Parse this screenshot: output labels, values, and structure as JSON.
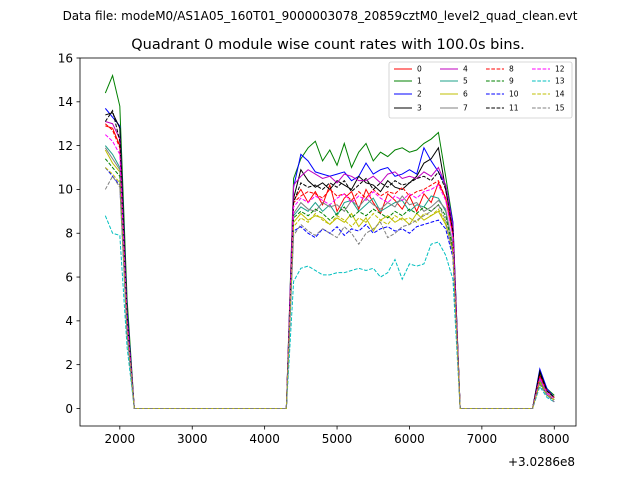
{
  "suptitle": "Data file: modeM0/AS1A05_160T01_9000003078_20859cztM0_level2_quad_clean.evt",
  "chart_data": {
    "type": "line",
    "title": "Quadrant 0 module wise count rates with 100.0s bins.",
    "xlabel": "",
    "ylabel": "",
    "x_offset_label": "+3.0286e8",
    "xlim": [
      1450,
      8300
    ],
    "ylim": [
      -0.8,
      16
    ],
    "xticks": [
      2000,
      3000,
      4000,
      5000,
      6000,
      7000,
      8000
    ],
    "yticks": [
      0,
      2,
      4,
      6,
      8,
      10,
      12,
      14,
      16
    ],
    "grid": false,
    "legend_position": "top-right",
    "x": [
      1800,
      1900,
      2000,
      2100,
      2200,
      2300,
      2400,
      2500,
      2600,
      2700,
      2800,
      2900,
      3000,
      3100,
      3200,
      3300,
      3400,
      3500,
      3600,
      3700,
      3800,
      3900,
      4000,
      4100,
      4200,
      4300,
      4400,
      4500,
      4600,
      4700,
      4800,
      4900,
      5000,
      5100,
      5200,
      5300,
      5400,
      5500,
      5600,
      5700,
      5800,
      5900,
      6000,
      6100,
      6200,
      6300,
      6400,
      6500,
      6600,
      6700,
      6800,
      6900,
      7000,
      7100,
      7200,
      7300,
      7400,
      7500,
      7600,
      7700,
      7800,
      7900,
      8000
    ],
    "series": [
      {
        "name": "0",
        "color": "#ff0000",
        "dash": "solid",
        "values": [
          12.9,
          12.8,
          12.0,
          4.0,
          0,
          0,
          0,
          0,
          0,
          0,
          0,
          0,
          0,
          0,
          0,
          0,
          0,
          0,
          0,
          0,
          0,
          0,
          0,
          0,
          0,
          0,
          9.5,
          10.0,
          9.4,
          9.9,
          9.3,
          10.2,
          9.0,
          9.6,
          9.9,
          9.1,
          10.0,
          9.4,
          8.9,
          9.8,
          9.5,
          9.1,
          9.7,
          9.0,
          9.8,
          9.4,
          10.3,
          9.6,
          8.0,
          0,
          0,
          0,
          0,
          0,
          0,
          0,
          0,
          0,
          0,
          0,
          1.5,
          0.8,
          0.5
        ]
      },
      {
        "name": "1",
        "color": "#008000",
        "dash": "solid",
        "values": [
          14.4,
          15.2,
          13.8,
          5.0,
          0,
          0,
          0,
          0,
          0,
          0,
          0,
          0,
          0,
          0,
          0,
          0,
          0,
          0,
          0,
          0,
          0,
          0,
          0,
          0,
          0,
          0,
          10.5,
          11.4,
          11.9,
          12.2,
          11.3,
          11.8,
          11.1,
          12.1,
          11.0,
          11.7,
          12.1,
          11.3,
          11.7,
          11.5,
          11.8,
          11.9,
          11.7,
          11.8,
          12.1,
          12.3,
          12.6,
          10.6,
          8.5,
          0,
          0,
          0,
          0,
          0,
          0,
          0,
          0,
          0,
          0,
          0,
          1.6,
          0.9,
          0.6
        ]
      },
      {
        "name": "2",
        "color": "#0000ff",
        "dash": "solid",
        "values": [
          13.7,
          13.3,
          12.9,
          4.5,
          0,
          0,
          0,
          0,
          0,
          0,
          0,
          0,
          0,
          0,
          0,
          0,
          0,
          0,
          0,
          0,
          0,
          0,
          0,
          0,
          0,
          0,
          10.1,
          11.6,
          11.3,
          10.8,
          10.7,
          10.6,
          10.7,
          10.8,
          10.4,
          10.6,
          11.2,
          10.7,
          10.9,
          11.0,
          10.6,
          10.7,
          10.9,
          10.7,
          11.9,
          11.3,
          10.8,
          10.2,
          8.5,
          0,
          0,
          0,
          0,
          0,
          0,
          0,
          0,
          0,
          0,
          0,
          1.8,
          0.9,
          0.5
        ]
      },
      {
        "name": "3",
        "color": "#000000",
        "dash": "solid",
        "values": [
          13.4,
          13.5,
          12.8,
          4.2,
          0,
          0,
          0,
          0,
          0,
          0,
          0,
          0,
          0,
          0,
          0,
          0,
          0,
          0,
          0,
          0,
          0,
          0,
          0,
          0,
          0,
          0,
          9.6,
          10.9,
          10.4,
          10.1,
          10.3,
          10.0,
          10.4,
          10.2,
          10.0,
          10.6,
          10.3,
          10.2,
          9.9,
          10.4,
          10.1,
          10.0,
          10.3,
          10.6,
          11.2,
          11.4,
          11.9,
          10.0,
          8.2,
          0,
          0,
          0,
          0,
          0,
          0,
          0,
          0,
          0,
          0,
          0,
          1.7,
          0.8,
          0.5
        ]
      },
      {
        "name": "4",
        "color": "#bf00bf",
        "dash": "solid",
        "values": [
          13.1,
          13.0,
          12.3,
          4.1,
          0,
          0,
          0,
          0,
          0,
          0,
          0,
          0,
          0,
          0,
          0,
          0,
          0,
          0,
          0,
          0,
          0,
          0,
          0,
          0,
          0,
          0,
          10.2,
          10.6,
          10.9,
          10.7,
          10.5,
          10.6,
          10.3,
          10.7,
          10.6,
          10.4,
          10.4,
          10.6,
          10.3,
          10.7,
          10.8,
          10.5,
          10.6,
          10.5,
          10.8,
          10.6,
          11.0,
          10.2,
          8.3,
          0,
          0,
          0,
          0,
          0,
          0,
          0,
          0,
          0,
          0,
          0,
          1.4,
          0.7,
          0.4
        ]
      },
      {
        "name": "5",
        "color": "#1ca08a",
        "dash": "solid",
        "values": [
          12.0,
          11.6,
          11.0,
          3.8,
          0,
          0,
          0,
          0,
          0,
          0,
          0,
          0,
          0,
          0,
          0,
          0,
          0,
          0,
          0,
          0,
          0,
          0,
          0,
          0,
          0,
          0,
          8.8,
          9.2,
          9.0,
          9.4,
          9.0,
          9.3,
          8.8,
          9.4,
          9.5,
          9.0,
          9.3,
          9.6,
          9.0,
          9.2,
          9.4,
          9.5,
          9.0,
          9.3,
          9.2,
          9.7,
          9.6,
          9.0,
          7.5,
          0,
          0,
          0,
          0,
          0,
          0,
          0,
          0,
          0,
          0,
          0,
          1.3,
          0.7,
          0.4
        ]
      },
      {
        "name": "6",
        "color": "#bfbf00",
        "dash": "solid",
        "values": [
          11.8,
          11.2,
          10.8,
          3.6,
          0,
          0,
          0,
          0,
          0,
          0,
          0,
          0,
          0,
          0,
          0,
          0,
          0,
          0,
          0,
          0,
          0,
          0,
          0,
          0,
          0,
          0,
          8.5,
          8.9,
          8.6,
          8.8,
          8.7,
          8.4,
          8.7,
          8.5,
          8.9,
          8.3,
          8.7,
          8.1,
          8.6,
          8.8,
          8.5,
          8.7,
          8.4,
          8.9,
          8.6,
          8.8,
          9.0,
          8.4,
          7.2,
          0,
          0,
          0,
          0,
          0,
          0,
          0,
          0,
          0,
          0,
          0,
          1.2,
          0.6,
          0.4
        ]
      },
      {
        "name": "7",
        "color": "#808080",
        "dash": "solid",
        "values": [
          11.9,
          11.4,
          10.9,
          3.7,
          0,
          0,
          0,
          0,
          0,
          0,
          0,
          0,
          0,
          0,
          0,
          0,
          0,
          0,
          0,
          0,
          0,
          0,
          0,
          0,
          0,
          0,
          8.9,
          9.4,
          9.1,
          9.0,
          9.4,
          9.2,
          9.3,
          9.0,
          9.5,
          9.2,
          9.6,
          9.3,
          9.1,
          9.4,
          9.2,
          9.7,
          9.3,
          9.4,
          9.0,
          9.2,
          9.5,
          9.1,
          7.4,
          0,
          0,
          0,
          0,
          0,
          0,
          0,
          0,
          0,
          0,
          0,
          1.3,
          0.7,
          0.4
        ]
      },
      {
        "name": "8",
        "color": "#ff0000",
        "dash": "dashed",
        "values": [
          13.0,
          12.7,
          11.9,
          4.1,
          0,
          0,
          0,
          0,
          0,
          0,
          0,
          0,
          0,
          0,
          0,
          0,
          0,
          0,
          0,
          0,
          0,
          0,
          0,
          0,
          0,
          0,
          9.4,
          9.7,
          9.9,
          9.8,
          9.6,
          10.0,
          9.7,
          9.8,
          9.5,
          9.9,
          9.6,
          10.0,
          9.7,
          9.9,
          9.8,
          10.1,
          9.7,
          9.9,
          10.0,
          10.2,
          10.4,
          9.6,
          7.9,
          0,
          0,
          0,
          0,
          0,
          0,
          0,
          0,
          0,
          0,
          0,
          1.5,
          0.8,
          0.5
        ]
      },
      {
        "name": "9",
        "color": "#008000",
        "dash": "dashed",
        "values": [
          11.4,
          11.0,
          10.6,
          3.6,
          0,
          0,
          0,
          0,
          0,
          0,
          0,
          0,
          0,
          0,
          0,
          0,
          0,
          0,
          0,
          0,
          0,
          0,
          0,
          0,
          0,
          0,
          8.7,
          9.0,
          8.8,
          9.1,
          8.9,
          8.6,
          8.9,
          9.2,
          8.7,
          9.0,
          8.8,
          9.1,
          8.9,
          8.7,
          9.0,
          8.8,
          9.1,
          8.9,
          9.2,
          9.0,
          9.3,
          8.8,
          7.3,
          0,
          0,
          0,
          0,
          0,
          0,
          0,
          0,
          0,
          0,
          0,
          1.2,
          0.6,
          0.4
        ]
      },
      {
        "name": "10",
        "color": "#0000ff",
        "dash": "dashed",
        "values": [
          11.0,
          10.6,
          10.2,
          3.4,
          0,
          0,
          0,
          0,
          0,
          0,
          0,
          0,
          0,
          0,
          0,
          0,
          0,
          0,
          0,
          0,
          0,
          0,
          0,
          0,
          0,
          0,
          8.1,
          8.3,
          8.0,
          7.8,
          8.2,
          8.0,
          8.3,
          7.9,
          8.2,
          8.1,
          8.4,
          8.0,
          8.2,
          8.3,
          8.1,
          8.2,
          8.0,
          8.3,
          8.4,
          8.5,
          8.6,
          8.2,
          6.9,
          0,
          0,
          0,
          0,
          0,
          0,
          0,
          0,
          0,
          0,
          0,
          1.1,
          0.6,
          0.3
        ]
      },
      {
        "name": "11",
        "color": "#000000",
        "dash": "dashed",
        "values": [
          13.1,
          13.6,
          12.2,
          4.2,
          0,
          0,
          0,
          0,
          0,
          0,
          0,
          0,
          0,
          0,
          0,
          0,
          0,
          0,
          0,
          0,
          0,
          0,
          0,
          0,
          0,
          0,
          9.4,
          10.3,
          10.1,
          10.2,
          10.0,
          10.3,
          10.1,
          10.4,
          9.9,
          10.2,
          10.5,
          10.0,
          10.3,
          10.1,
          10.4,
          10.2,
          10.3,
          10.5,
          10.6,
          10.4,
          10.8,
          10.0,
          8.1,
          0,
          0,
          0,
          0,
          0,
          0,
          0,
          0,
          0,
          0,
          0,
          1.6,
          0.8,
          0.5
        ]
      },
      {
        "name": "12",
        "color": "#ff00ff",
        "dash": "dashed",
        "values": [
          12.5,
          12.2,
          11.6,
          4.0,
          0,
          0,
          0,
          0,
          0,
          0,
          0,
          0,
          0,
          0,
          0,
          0,
          0,
          0,
          0,
          0,
          0,
          0,
          0,
          0,
          0,
          0,
          9.2,
          9.6,
          9.4,
          9.7,
          9.5,
          9.3,
          9.6,
          9.8,
          9.4,
          9.7,
          9.5,
          9.9,
          9.6,
          9.4,
          9.7,
          9.5,
          9.8,
          9.6,
          9.9,
          10.0,
          10.2,
          9.5,
          7.8,
          0,
          0,
          0,
          0,
          0,
          0,
          0,
          0,
          0,
          0,
          0,
          1.4,
          0.7,
          0.4
        ]
      },
      {
        "name": "13",
        "color": "#00bfbf",
        "dash": "dashed",
        "values": [
          8.8,
          8.0,
          7.9,
          2.8,
          0,
          0,
          0,
          0,
          0,
          0,
          0,
          0,
          0,
          0,
          0,
          0,
          0,
          0,
          0,
          0,
          0,
          0,
          0,
          0,
          0,
          0,
          5.8,
          6.4,
          6.5,
          6.3,
          6.1,
          6.1,
          6.2,
          6.2,
          6.3,
          6.4,
          6.3,
          6.4,
          6.0,
          6.2,
          6.8,
          5.9,
          6.6,
          6.5,
          6.6,
          7.5,
          7.6,
          7.0,
          5.9,
          0,
          0,
          0,
          0,
          0,
          0,
          0,
          0,
          0,
          0,
          0,
          1.0,
          0.5,
          0.3
        ]
      },
      {
        "name": "14",
        "color": "#bfbf00",
        "dash": "dashed",
        "values": [
          11.0,
          10.7,
          10.3,
          3.5,
          0,
          0,
          0,
          0,
          0,
          0,
          0,
          0,
          0,
          0,
          0,
          0,
          0,
          0,
          0,
          0,
          0,
          0,
          0,
          0,
          0,
          0,
          8.3,
          8.7,
          8.5,
          8.9,
          8.6,
          8.4,
          8.8,
          8.6,
          8.3,
          8.7,
          8.5,
          8.9,
          8.6,
          8.4,
          8.8,
          8.6,
          8.7,
          8.5,
          8.9,
          8.8,
          9.1,
          8.5,
          7.1,
          0,
          0,
          0,
          0,
          0,
          0,
          0,
          0,
          0,
          0,
          0,
          1.2,
          0.6,
          0.4
        ]
      },
      {
        "name": "15",
        "color": "#808080",
        "dash": "dashed",
        "values": [
          10.0,
          10.6,
          10.1,
          3.4,
          0,
          0,
          0,
          0,
          0,
          0,
          0,
          0,
          0,
          0,
          0,
          0,
          0,
          0,
          0,
          0,
          0,
          0,
          0,
          0,
          0,
          0,
          7.9,
          8.4,
          8.1,
          7.9,
          8.2,
          8.0,
          7.8,
          8.3,
          8.0,
          7.5,
          8.0,
          8.2,
          8.5,
          7.8,
          8.0,
          8.3,
          8.4,
          8.6,
          8.8,
          9.0,
          9.3,
          8.6,
          7.0,
          0,
          0,
          0,
          0,
          0,
          0,
          0,
          0,
          0,
          0,
          0,
          1.1,
          0.6,
          0.3
        ]
      }
    ]
  }
}
